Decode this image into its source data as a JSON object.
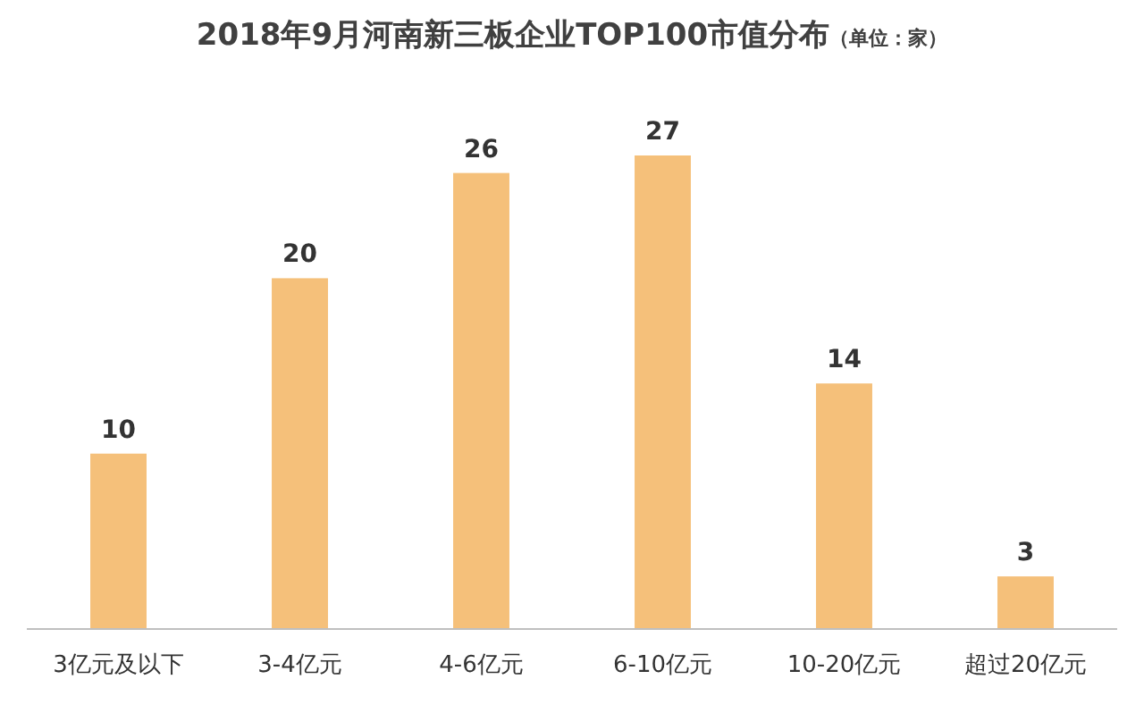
{
  "chart_data": {
    "type": "bar",
    "title": "2018年9月河南新三板企业TOP100市值分布",
    "subtitle": "（单位：家）",
    "categories": [
      "3亿元及以下",
      "3-4亿元",
      "4-6亿元",
      "6-10亿元",
      "10-20亿元",
      "超过20亿元"
    ],
    "values": [
      10,
      20,
      26,
      27,
      14,
      3
    ],
    "color": "#f5c07a",
    "data_labels": true
  }
}
